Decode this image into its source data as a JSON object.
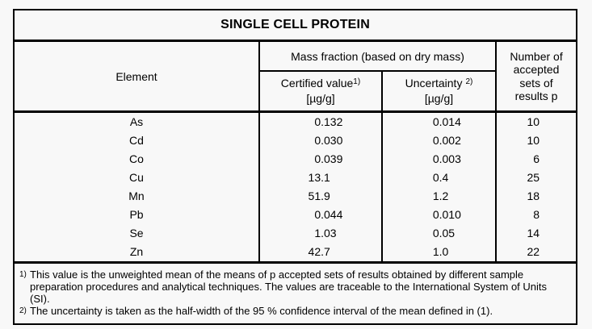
{
  "page": {
    "background_color": "#f8f8f8",
    "border_color": "#000000",
    "text_color": "#000000"
  },
  "table": {
    "title": "SINGLE CELL PROTEIN",
    "columns": {
      "element": "Element",
      "mass_fraction_group": "Mass fraction (based on dry mass)",
      "certified": {
        "label": "Certified value",
        "footnote_ref": "1)",
        "unit": "[µg/g]"
      },
      "uncertainty": {
        "label": "Uncertainty",
        "footnote_ref": "2)",
        "unit": "[µg/g]"
      },
      "accepted_sets_lines": [
        "Number of",
        "accepted",
        "sets of",
        "results p"
      ]
    },
    "rows": [
      {
        "element": "As",
        "certified": "0.132",
        "uncertainty": "0.014",
        "n": "10"
      },
      {
        "element": "Cd",
        "certified": "0.030",
        "uncertainty": "0.002",
        "n": "10"
      },
      {
        "element": "Co",
        "certified": "0.039",
        "uncertainty": "0.003",
        "n": "6"
      },
      {
        "element": "Cu",
        "certified": "13.1",
        "uncertainty": "0.4",
        "n": "25"
      },
      {
        "element": "Mn",
        "certified": "51.9",
        "uncertainty": "1.2",
        "n": "18"
      },
      {
        "element": "Pb",
        "certified": "0.044",
        "uncertainty": "0.010",
        "n": "8"
      },
      {
        "element": "Se",
        "certified": "1.03",
        "uncertainty": "0.05",
        "n": "14"
      },
      {
        "element": "Zn",
        "certified": "42.7",
        "uncertainty": "1.0",
        "n": "22"
      }
    ],
    "footnotes": [
      {
        "marker": "1)",
        "text": "This value is the unweighted mean of the means of p accepted sets of results obtained by different sample preparation procedures and analytical techniques. The values are traceable to the International System of Units (SI)."
      },
      {
        "marker": "2)",
        "text": "The uncertainty is taken as the half-width of the 95 % confidence interval of the mean defined in (1)."
      }
    ]
  }
}
